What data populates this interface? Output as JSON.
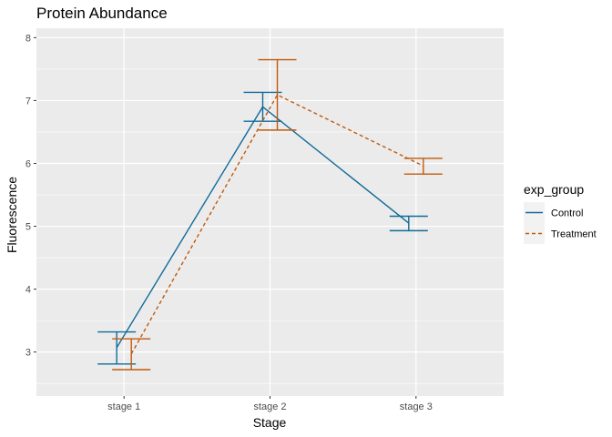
{
  "chart_data": {
    "type": "line",
    "title": "Protein Abundance",
    "xlabel": "Stage",
    "ylabel": "Fluorescence",
    "categories": [
      "stage 1",
      "stage 2",
      "stage 3"
    ],
    "ylim": [
      2.3,
      8.15
    ],
    "yticks": [
      3,
      4,
      5,
      6,
      7,
      8
    ],
    "grid": true,
    "legend": {
      "title": "exp_group",
      "placement": "right"
    },
    "series": [
      {
        "name": "Control",
        "color": "#0f6b99",
        "dash": "solid",
        "dodge": -0.05,
        "mean": [
          3.07,
          6.9,
          5.05
        ],
        "ymin": [
          2.81,
          6.67,
          4.93
        ],
        "ymax": [
          3.32,
          7.13,
          5.16
        ]
      },
      {
        "name": "Treatment",
        "color": "#c05a0b",
        "dash": "dashed",
        "dodge": 0.05,
        "mean": [
          2.97,
          7.09,
          5.96
        ],
        "ymin": [
          2.72,
          6.53,
          5.83
        ],
        "ymax": [
          3.21,
          7.65,
          6.08
        ]
      }
    ]
  }
}
